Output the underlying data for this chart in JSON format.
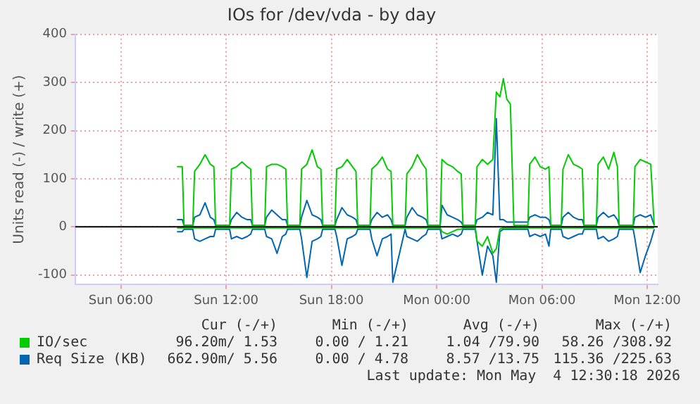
{
  "chart_data": {
    "type": "line",
    "title": "IOs for /dev/vda - by day",
    "ylabel": "Units read (-) / write (+)",
    "xlim": [
      "2026-05-03T03:24",
      "2026-05-04T12:36"
    ],
    "ylim": [
      -120,
      400
    ],
    "xticks": [
      {
        "value": "2026-05-03T06:00",
        "label": "Sun 06:00"
      },
      {
        "value": "2026-05-03T12:00",
        "label": "Sun 12:00"
      },
      {
        "value": "2026-05-03T18:00",
        "label": "Sun 18:00"
      },
      {
        "value": "2026-05-04T00:00",
        "label": "Mon 00:00"
      },
      {
        "value": "2026-05-04T06:00",
        "label": "Mon 06:00"
      },
      {
        "value": "2026-05-04T12:00",
        "label": "Mon 12:00"
      }
    ],
    "yticks": [
      -100,
      0,
      100,
      200,
      300,
      400
    ],
    "grid": true,
    "legend": "bottom",
    "marker": "none",
    "ref_lines": [
      {
        "axis": "y",
        "value": 0,
        "color": "#000000"
      }
    ],
    "x": [
      "2026-05-03T09:12",
      "2026-05-03T09:30",
      "2026-05-03T09:36",
      "2026-05-03T10:06",
      "2026-05-03T10:12",
      "2026-05-03T10:30",
      "2026-05-03T10:48",
      "2026-05-03T11:06",
      "2026-05-03T11:18",
      "2026-05-03T11:24",
      "2026-05-03T12:12",
      "2026-05-03T12:18",
      "2026-05-03T12:36",
      "2026-05-03T12:54",
      "2026-05-03T13:12",
      "2026-05-03T13:24",
      "2026-05-03T13:30",
      "2026-05-03T14:12",
      "2026-05-03T14:18",
      "2026-05-03T14:36",
      "2026-05-03T14:54",
      "2026-05-03T15:12",
      "2026-05-03T15:24",
      "2026-05-03T15:30",
      "2026-05-03T16:12",
      "2026-05-03T16:18",
      "2026-05-03T16:36",
      "2026-05-03T16:54",
      "2026-05-03T17:12",
      "2026-05-03T17:24",
      "2026-05-03T17:30",
      "2026-05-03T18:12",
      "2026-05-03T18:18",
      "2026-05-03T18:36",
      "2026-05-03T18:54",
      "2026-05-03T19:12",
      "2026-05-03T19:24",
      "2026-05-03T19:30",
      "2026-05-03T20:12",
      "2026-05-03T20:18",
      "2026-05-03T20:36",
      "2026-05-03T20:54",
      "2026-05-03T21:12",
      "2026-05-03T21:24",
      "2026-05-03T21:30",
      "2026-05-03T22:12",
      "2026-05-03T22:18",
      "2026-05-03T22:36",
      "2026-05-03T22:54",
      "2026-05-03T23:12",
      "2026-05-03T23:24",
      "2026-05-03T23:30",
      "2026-05-04T00:12",
      "2026-05-04T00:18",
      "2026-05-04T00:36",
      "2026-05-04T00:54",
      "2026-05-04T01:12",
      "2026-05-04T01:24",
      "2026-05-04T01:30",
      "2026-05-04T02:12",
      "2026-05-04T02:18",
      "2026-05-04T02:36",
      "2026-05-04T02:54",
      "2026-05-04T03:12",
      "2026-05-04T03:24",
      "2026-05-04T03:36",
      "2026-05-04T03:48",
      "2026-05-04T04:00",
      "2026-05-04T04:12",
      "2026-05-04T04:24",
      "2026-05-04T05:12",
      "2026-05-04T05:18",
      "2026-05-04T05:36",
      "2026-05-04T05:54",
      "2026-05-04T06:12",
      "2026-05-04T06:24",
      "2026-05-04T06:30",
      "2026-05-04T07:06",
      "2026-05-04T07:12",
      "2026-05-04T07:30",
      "2026-05-04T07:48",
      "2026-05-04T08:06",
      "2026-05-04T08:18",
      "2026-05-04T08:24",
      "2026-05-04T09:06",
      "2026-05-04T09:12",
      "2026-05-04T09:30",
      "2026-05-04T09:48",
      "2026-05-04T10:06",
      "2026-05-04T10:18",
      "2026-05-04T10:24",
      "2026-05-04T11:12",
      "2026-05-04T11:18",
      "2026-05-04T11:36",
      "2026-05-04T11:54",
      "2026-05-04T12:12",
      "2026-05-04T12:24"
    ],
    "series": [
      {
        "name": "IO/sec",
        "color": "#00cc00",
        "values": [
          125,
          125,
          3,
          3,
          115,
          130,
          150,
          130,
          125,
          3,
          3,
          120,
          125,
          135,
          125,
          120,
          3,
          3,
          125,
          130,
          130,
          125,
          120,
          3,
          3,
          120,
          130,
          160,
          125,
          120,
          3,
          3,
          120,
          125,
          140,
          125,
          115,
          3,
          3,
          120,
          130,
          145,
          120,
          115,
          3,
          3,
          110,
          125,
          150,
          130,
          120,
          3,
          3,
          140,
          130,
          125,
          115,
          110,
          3,
          3,
          125,
          140,
          130,
          140,
          280,
          270,
          308,
          265,
          255,
          3,
          3,
          130,
          145,
          125,
          120,
          125,
          3,
          3,
          120,
          150,
          130,
          125,
          120,
          3,
          3,
          130,
          145,
          120,
          155,
          125,
          3,
          3,
          125,
          140,
          135,
          130,
          3
        ]
      },
      {
        "name": "Req Size (KB)",
        "color": "#0066b3",
        "values": [
          15,
          15,
          3,
          3,
          20,
          25,
          50,
          20,
          15,
          3,
          3,
          15,
          30,
          20,
          15,
          15,
          3,
          3,
          20,
          35,
          25,
          15,
          15,
          3,
          3,
          20,
          55,
          25,
          20,
          15,
          3,
          3,
          15,
          40,
          25,
          20,
          15,
          3,
          3,
          15,
          30,
          20,
          25,
          15,
          3,
          3,
          20,
          40,
          25,
          20,
          15,
          3,
          3,
          45,
          25,
          20,
          15,
          10,
          3,
          3,
          15,
          20,
          30,
          25,
          225,
          15,
          15,
          10,
          10,
          10,
          10,
          20,
          25,
          20,
          20,
          15,
          3,
          3,
          20,
          30,
          20,
          15,
          15,
          3,
          3,
          20,
          30,
          20,
          25,
          15,
          3,
          3,
          20,
          25,
          20,
          25,
          3
        ]
      },
      {
        "color": "#00cc00",
        "values": [
          -2,
          -2,
          -2,
          -2,
          -2,
          -2,
          -2,
          -2,
          -2,
          -2,
          -2,
          -2,
          -2,
          -2,
          -2,
          -2,
          -2,
          -2,
          -2,
          -2,
          -2,
          -2,
          -2,
          -2,
          -2,
          -2,
          -2,
          -2,
          -2,
          -2,
          -2,
          -2,
          -2,
          -2,
          -2,
          -2,
          -2,
          -2,
          -2,
          -2,
          -2,
          -2,
          -2,
          -2,
          -2,
          -2,
          -2,
          -2,
          -2,
          -2,
          -2,
          -2,
          -2,
          -10,
          -15,
          -10,
          -5,
          -5,
          -2,
          -2,
          -30,
          -40,
          -20,
          -55,
          -45,
          -5,
          -2,
          -2,
          -2,
          -2,
          -2,
          -2,
          -2,
          -2,
          -2,
          -2,
          -2,
          -2,
          -2,
          -2,
          -2,
          -2,
          -2,
          -2,
          -2,
          -2,
          -2,
          -2,
          -2,
          -2,
          -2,
          -2,
          -2,
          -2,
          -2,
          -2,
          -2
        ]
      },
      {
        "color": "#0066b3",
        "values": [
          -10,
          -10,
          -5,
          -5,
          -25,
          -30,
          -25,
          -20,
          -20,
          -5,
          -5,
          -25,
          -20,
          -25,
          -20,
          -15,
          -5,
          -5,
          -20,
          -25,
          -55,
          -20,
          -15,
          -5,
          -5,
          -25,
          -105,
          -30,
          -25,
          -20,
          -5,
          -5,
          -20,
          -80,
          -25,
          -20,
          -15,
          -5,
          -5,
          -25,
          -60,
          -25,
          -20,
          -15,
          -115,
          -5,
          -20,
          -25,
          -30,
          -20,
          -15,
          -5,
          -5,
          -25,
          -20,
          -15,
          -20,
          -15,
          -5,
          -5,
          -30,
          -100,
          -40,
          -60,
          -115,
          -10,
          -5,
          -5,
          -5,
          -5,
          -5,
          -20,
          -15,
          -20,
          -15,
          -40,
          -5,
          -5,
          -20,
          -25,
          -20,
          -15,
          -15,
          -5,
          -5,
          -25,
          -20,
          -30,
          -25,
          -20,
          -5,
          -5,
          -25,
          -95,
          -60,
          -30,
          -5
        ]
      }
    ],
    "annotations": [
      "Cur (-/+)",
      "Min (-/+)",
      "Avg (-/+)",
      "Max (-/+)",
      "96.20m/ 1.53",
      "0.00 / 1.21",
      "1.04 /79.90",
      "58.26 /308.92",
      "662.90m/ 5.56",
      "0.00 / 4.78",
      "8.57 /13.75",
      "115.36 /225.63",
      "Last update: Mon May  4 12:30:18 2026"
    ]
  }
}
